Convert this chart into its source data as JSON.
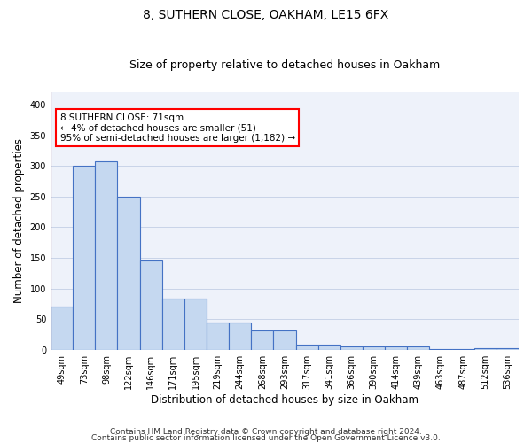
{
  "title1": "8, SUTHERN CLOSE, OAKHAM, LE15 6FX",
  "title2": "Size of property relative to detached houses in Oakham",
  "xlabel": "Distribution of detached houses by size in Oakham",
  "ylabel": "Number of detached properties",
  "categories": [
    "49sqm",
    "73sqm",
    "98sqm",
    "122sqm",
    "146sqm",
    "171sqm",
    "195sqm",
    "219sqm",
    "244sqm",
    "268sqm",
    "293sqm",
    "317sqm",
    "341sqm",
    "366sqm",
    "390sqm",
    "414sqm",
    "439sqm",
    "463sqm",
    "487sqm",
    "512sqm",
    "536sqm"
  ],
  "values": [
    70,
    300,
    308,
    250,
    145,
    83,
    83,
    44,
    44,
    32,
    32,
    8,
    8,
    5,
    5,
    5,
    5,
    1,
    1,
    3,
    3
  ],
  "bar_color": "#c5d8f0",
  "bar_edge_color": "#4472c4",
  "ylim": [
    0,
    420
  ],
  "yticks": [
    0,
    50,
    100,
    150,
    200,
    250,
    300,
    350,
    400
  ],
  "red_line_x": -0.5,
  "annotation_text": "8 SUTHERN CLOSE: 71sqm\n← 4% of detached houses are smaller (51)\n95% of semi-detached houses are larger (1,182) →",
  "annotation_box_color": "white",
  "annotation_box_edge_color": "red",
  "footer_line1": "Contains HM Land Registry data © Crown copyright and database right 2024.",
  "footer_line2": "Contains public sector information licensed under the Open Government Licence v3.0.",
  "bg_color": "#eef2fa",
  "grid_color": "#c8d4e8",
  "title1_fontsize": 10,
  "title2_fontsize": 9,
  "xlabel_fontsize": 8.5,
  "ylabel_fontsize": 8.5,
  "tick_fontsize": 7,
  "ann_fontsize": 7.5,
  "footer_fontsize": 6.5
}
